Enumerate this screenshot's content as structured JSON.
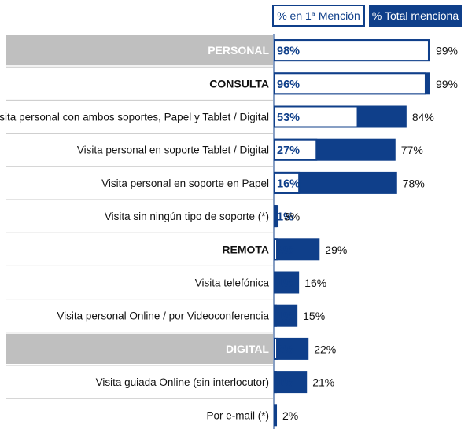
{
  "legend": {
    "first_mention": "% en 1ª Mención",
    "total_mention": "% Total menciona"
  },
  "colors": {
    "bar": "#0f3f8a",
    "header_row_bg": "#bfbfbf",
    "separator": "#c8c8c8",
    "label_text": "#111111",
    "header_label_text": "#ffffff"
  },
  "chart_data": {
    "type": "bar",
    "orientation": "horizontal",
    "series": [
      {
        "name": "% en 1ª Mención"
      },
      {
        "name": "% Total menciona"
      }
    ],
    "rows": [
      {
        "label": "PERSONAL",
        "first": 98,
        "first_label": "98%",
        "total": 99,
        "total_label": "99%",
        "style": "gray-header"
      },
      {
        "label": "CONSULTA",
        "first": 96,
        "first_label": "96%",
        "total": 99,
        "total_label": "99%",
        "style": "bold"
      },
      {
        "label": "Visita personal con ambos soportes, Papel y Tablet / Digital",
        "first": 53,
        "first_label": "53%",
        "total": 84,
        "total_label": "84%",
        "style": "normal"
      },
      {
        "label": "Visita personal en soporte Tablet / Digital",
        "first": 27,
        "first_label": "27%",
        "total": 77,
        "total_label": "77%",
        "style": "normal"
      },
      {
        "label": "Visita personal en soporte en Papel",
        "first": 16,
        "first_label": "16%",
        "total": 78,
        "total_label": "78%",
        "style": "normal"
      },
      {
        "label": "Visita sin ningún tipo de soporte (*)",
        "first": 1,
        "first_label": "1%",
        "total": 3,
        "total_label": "3%",
        "style": "normal"
      },
      {
        "label": "REMOTA",
        "first": 2,
        "first_label": "2%",
        "total": 29,
        "total_label": "29%",
        "style": "bold"
      },
      {
        "label": "Visita telefónica",
        "first": 1,
        "first_label": "1%",
        "total": 16,
        "total_label": "16%",
        "style": "normal"
      },
      {
        "label": "Visita personal Online / por Videoconferencia",
        "first": 1,
        "first_label": "1%",
        "total": 15,
        "total_label": "15%",
        "style": "normal"
      },
      {
        "label": "DIGITAL",
        "first": 2,
        "first_label": "2%",
        "total": 22,
        "total_label": "22%",
        "style": "gray-header"
      },
      {
        "label": "Visita guiada Online (sin interlocutor)",
        "first": 1,
        "first_label": "1%",
        "total": 21,
        "total_label": "21%",
        "style": "normal"
      },
      {
        "label": "Por e-mail (*)",
        "first": null,
        "first_label": "",
        "total": 2,
        "total_label": "2%",
        "style": "normal"
      }
    ],
    "xlim": [
      0,
      100
    ]
  }
}
